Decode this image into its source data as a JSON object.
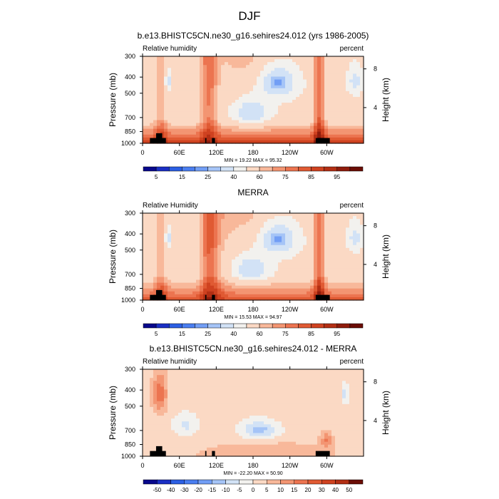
{
  "figure": {
    "title": "DJF"
  },
  "scales": {
    "x_tick_labels": [
      "0",
      "60E",
      "120E",
      "180",
      "120W",
      "60W"
    ],
    "x_tick_lon": [
      0,
      60,
      120,
      180,
      240,
      300
    ],
    "x_range_lon": [
      0,
      360
    ],
    "pressure_tick_labels": [
      "300",
      "400",
      "500",
      "700",
      "850",
      "1000"
    ],
    "pressure_ticks_mb": [
      300,
      400,
      500,
      700,
      850,
      1000
    ],
    "height_tick_labels": [
      "8",
      "4"
    ],
    "height_ticks_km": [
      8,
      4
    ],
    "y_axis_label": "Pressure (mb)",
    "right_axis_label": "Height (km)"
  },
  "chart_data": [
    {
      "type": "heatmap",
      "title": "b.e13.BHISTC5CN.ne30_g16.sehires24.012 (yrs 1986-2005)",
      "left_label": "Relative humidity",
      "right_label": "percent",
      "stats_text": "MIN = 19.22  MAX = 95.32",
      "min": 19.22,
      "max": 95.32,
      "colorbar_labels": [
        "5",
        "15",
        "25",
        "40",
        "60",
        "75",
        "85",
        "95"
      ],
      "colorbar_colors": [
        "#08088c",
        "#1a2fc4",
        "#2c5fe3",
        "#4a7ef0",
        "#729ef5",
        "#a5c4f7",
        "#d2e2f6",
        "#f2f1ee",
        "#fbd9c4",
        "#f8b89a",
        "#f39572",
        "#ec7450",
        "#e05a33",
        "#cf4220",
        "#b32f14",
        "#8f1c0c",
        "#6b0d05"
      ]
    },
    {
      "type": "heatmap",
      "title": "MERRA",
      "left_label": "Relative Humidity",
      "right_label": "percent",
      "stats_text": "MIN = 15.53  MAX = 94.97",
      "min": 15.53,
      "max": 94.97,
      "colorbar_labels": [
        "5",
        "15",
        "25",
        "40",
        "60",
        "75",
        "85",
        "95"
      ],
      "colorbar_colors": [
        "#08088c",
        "#1a2fc4",
        "#2c5fe3",
        "#4a7ef0",
        "#729ef5",
        "#a5c4f7",
        "#d2e2f6",
        "#f2f1ee",
        "#fbd9c4",
        "#f8b89a",
        "#f39572",
        "#ec7450",
        "#e05a33",
        "#cf4220",
        "#b32f14",
        "#8f1c0c",
        "#6b0d05"
      ]
    },
    {
      "type": "heatmap",
      "title": "b.e13.BHISTC5CN.ne30_g16.sehires24.012 - MERRA",
      "left_label": "Relative humidity",
      "right_label": "percent",
      "stats_text": "MIN = -22.20  MAX = 50.90",
      "min": -22.2,
      "max": 50.9,
      "colorbar_labels": [
        "-50",
        "-40",
        "-30",
        "-20",
        "-15",
        "-10",
        "-5",
        "0",
        "5",
        "10",
        "15",
        "20",
        "30",
        "40",
        "50"
      ],
      "colorbar_colors": [
        "#08088c",
        "#1a2fc4",
        "#2c5fe3",
        "#4a7ef0",
        "#729ef5",
        "#a5c4f7",
        "#d2e2f6",
        "#f2f1ee",
        "#fbd9c4",
        "#f8b89a",
        "#f39572",
        "#ec7450",
        "#e05a33",
        "#cf4220",
        "#b32f14",
        "#6b0d05"
      ]
    }
  ]
}
